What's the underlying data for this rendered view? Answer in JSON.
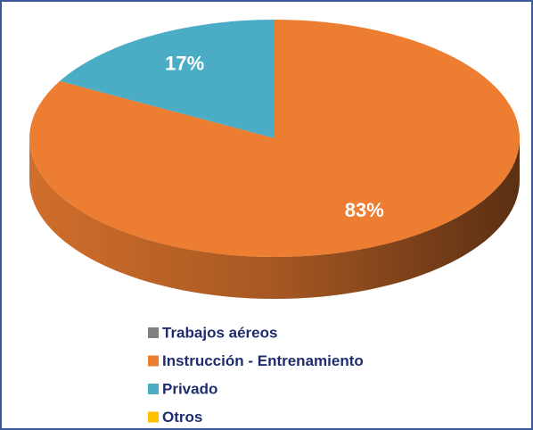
{
  "chart_data": {
    "type": "pie",
    "categories": [
      "Trabajos aéreos",
      "Instrucción - Entrenamiento",
      "Privado",
      "Otros"
    ],
    "values": [
      0,
      83,
      17,
      0
    ],
    "value_labels": [
      null,
      "83%",
      "17%",
      null
    ],
    "colors": [
      "#808080",
      "#ed7d31",
      "#4bacc6",
      "#ffc000"
    ],
    "legend": "bottom"
  }
}
